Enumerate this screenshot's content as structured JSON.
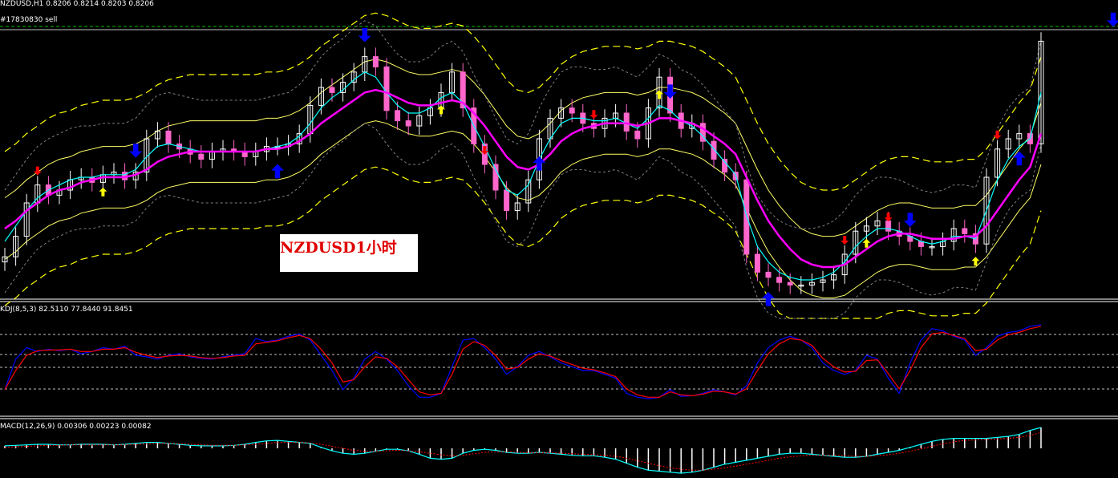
{
  "header": {
    "symbol_line": "NZDUSD,H1  0.8206 0.8214 0.8203 0.8206",
    "order_line": "#17830830 sell"
  },
  "annotation": {
    "text": "NZDUSD1小时"
  },
  "indicators": {
    "kdj_label": "KDJ(8,5,3) 82.5110 77.8440 91.8451",
    "macd_label": "MACD(12,26,9) 0.00306 0.00223 0.00082"
  },
  "colors": {
    "background": "#000000",
    "bull_candle": "#ffffff",
    "bear_candle": "#ff66cc",
    "ma_fast": "#00ffff",
    "ma_slow": "#ff00ff",
    "band_outer": "#ffff00",
    "band_inner": "#ffff66",
    "band_gray": "#808080",
    "arrow_big": "#0000ff",
    "arrow_sell": "#ff0000",
    "arrow_buy": "#ffff00",
    "kdj_k": "#0000ff",
    "kdj_d": "#ff0000",
    "macd_line": "#00ffff",
    "macd_signal": "#ff0000",
    "grid_dashed": "#c0c0c0"
  },
  "chart_data": {
    "type": "candlestick",
    "bars": 96,
    "close_y": [
      0.14,
      0.22,
      0.35,
      0.42,
      0.38,
      0.4,
      0.44,
      0.45,
      0.43,
      0.46,
      0.47,
      0.44,
      0.47,
      0.6,
      0.63,
      0.58,
      0.56,
      0.54,
      0.52,
      0.55,
      0.56,
      0.55,
      0.53,
      0.55,
      0.57,
      0.57,
      0.58,
      0.62,
      0.73,
      0.8,
      0.78,
      0.82,
      0.86,
      0.92,
      0.88,
      0.71,
      0.67,
      0.65,
      0.69,
      0.72,
      0.78,
      0.86,
      0.72,
      0.58,
      0.5,
      0.4,
      0.32,
      0.35,
      0.44,
      0.6,
      0.68,
      0.72,
      0.7,
      0.66,
      0.64,
      0.68,
      0.7,
      0.63,
      0.6,
      0.72,
      0.84,
      0.7,
      0.64,
      0.66,
      0.59,
      0.52,
      0.47,
      0.44,
      0.15,
      0.08,
      0.06,
      0.04,
      0.03,
      0.03,
      0.04,
      0.05,
      0.07,
      0.15,
      0.24,
      0.26,
      0.28,
      0.24,
      0.22,
      0.2,
      0.18,
      0.18,
      0.2,
      0.25,
      0.23,
      0.19,
      0.45,
      0.56,
      0.6,
      0.62,
      0.58,
      0.98
    ],
    "ma_fast": [
      0.2,
      0.26,
      0.32,
      0.37,
      0.4,
      0.42,
      0.44,
      0.45,
      0.45,
      0.46,
      0.46,
      0.46,
      0.48,
      0.53,
      0.57,
      0.58,
      0.57,
      0.56,
      0.55,
      0.55,
      0.55,
      0.55,
      0.55,
      0.55,
      0.56,
      0.57,
      0.58,
      0.61,
      0.66,
      0.72,
      0.76,
      0.79,
      0.83,
      0.86,
      0.84,
      0.78,
      0.73,
      0.7,
      0.7,
      0.72,
      0.76,
      0.78,
      0.74,
      0.65,
      0.57,
      0.48,
      0.4,
      0.38,
      0.42,
      0.52,
      0.6,
      0.66,
      0.68,
      0.68,
      0.67,
      0.67,
      0.68,
      0.66,
      0.64,
      0.68,
      0.73,
      0.71,
      0.67,
      0.65,
      0.61,
      0.56,
      0.51,
      0.46,
      0.3,
      0.18,
      0.12,
      0.08,
      0.06,
      0.05,
      0.05,
      0.06,
      0.08,
      0.12,
      0.18,
      0.22,
      0.25,
      0.25,
      0.24,
      0.22,
      0.2,
      0.19,
      0.2,
      0.22,
      0.22,
      0.21,
      0.32,
      0.44,
      0.52,
      0.57,
      0.6,
      0.78
    ],
    "ma_slow": [
      0.25,
      0.28,
      0.32,
      0.35,
      0.38,
      0.4,
      0.41,
      0.43,
      0.44,
      0.45,
      0.45,
      0.45,
      0.46,
      0.48,
      0.51,
      0.53,
      0.54,
      0.55,
      0.55,
      0.55,
      0.55,
      0.55,
      0.55,
      0.55,
      0.56,
      0.56,
      0.57,
      0.59,
      0.62,
      0.66,
      0.69,
      0.72,
      0.75,
      0.78,
      0.79,
      0.78,
      0.76,
      0.74,
      0.73,
      0.73,
      0.74,
      0.75,
      0.74,
      0.7,
      0.65,
      0.59,
      0.53,
      0.49,
      0.48,
      0.5,
      0.54,
      0.59,
      0.62,
      0.64,
      0.65,
      0.66,
      0.66,
      0.66,
      0.65,
      0.66,
      0.68,
      0.68,
      0.67,
      0.66,
      0.64,
      0.61,
      0.58,
      0.54,
      0.45,
      0.36,
      0.28,
      0.22,
      0.17,
      0.13,
      0.11,
      0.1,
      0.1,
      0.11,
      0.14,
      0.17,
      0.2,
      0.22,
      0.23,
      0.23,
      0.22,
      0.21,
      0.21,
      0.21,
      0.22,
      0.22,
      0.26,
      0.32,
      0.38,
      0.44,
      0.49,
      0.62
    ],
    "kdj_k": [
      0.15,
      0.55,
      0.7,
      0.65,
      0.68,
      0.66,
      0.68,
      0.62,
      0.65,
      0.7,
      0.68,
      0.72,
      0.6,
      0.58,
      0.55,
      0.6,
      0.62,
      0.58,
      0.56,
      0.55,
      0.58,
      0.6,
      0.62,
      0.82,
      0.78,
      0.8,
      0.85,
      0.88,
      0.8,
      0.6,
      0.4,
      0.15,
      0.3,
      0.55,
      0.65,
      0.55,
      0.4,
      0.2,
      0.05,
      0.05,
      0.1,
      0.45,
      0.8,
      0.82,
      0.7,
      0.55,
      0.35,
      0.45,
      0.6,
      0.65,
      0.58,
      0.5,
      0.45,
      0.4,
      0.4,
      0.35,
      0.3,
      0.1,
      0.05,
      0.03,
      0.05,
      0.15,
      0.06,
      0.07,
      0.1,
      0.15,
      0.12,
      0.08,
      0.2,
      0.5,
      0.7,
      0.8,
      0.85,
      0.8,
      0.7,
      0.5,
      0.4,
      0.35,
      0.4,
      0.6,
      0.55,
      0.3,
      0.1,
      0.5,
      0.8,
      0.95,
      0.92,
      0.85,
      0.8,
      0.6,
      0.7,
      0.85,
      0.9,
      0.92,
      0.98,
      1.0
    ],
    "kdj_d": [
      0.15,
      0.4,
      0.6,
      0.66,
      0.67,
      0.67,
      0.68,
      0.65,
      0.65,
      0.68,
      0.68,
      0.7,
      0.64,
      0.6,
      0.57,
      0.59,
      0.6,
      0.59,
      0.57,
      0.56,
      0.57,
      0.59,
      0.6,
      0.75,
      0.77,
      0.79,
      0.83,
      0.86,
      0.82,
      0.68,
      0.5,
      0.25,
      0.28,
      0.45,
      0.58,
      0.56,
      0.45,
      0.28,
      0.12,
      0.08,
      0.1,
      0.35,
      0.68,
      0.78,
      0.73,
      0.6,
      0.42,
      0.44,
      0.55,
      0.62,
      0.59,
      0.53,
      0.48,
      0.43,
      0.41,
      0.37,
      0.32,
      0.16,
      0.08,
      0.05,
      0.05,
      0.12,
      0.08,
      0.07,
      0.09,
      0.13,
      0.12,
      0.09,
      0.16,
      0.4,
      0.62,
      0.75,
      0.82,
      0.8,
      0.73,
      0.56,
      0.45,
      0.38,
      0.39,
      0.53,
      0.54,
      0.36,
      0.16,
      0.4,
      0.7,
      0.88,
      0.9,
      0.86,
      0.82,
      0.66,
      0.68,
      0.8,
      0.87,
      0.9,
      0.95,
      0.98
    ],
    "macd": [
      0.55,
      0.56,
      0.57,
      0.58,
      0.58,
      0.57,
      0.57,
      0.58,
      0.58,
      0.58,
      0.57,
      0.58,
      0.6,
      0.62,
      0.62,
      0.6,
      0.58,
      0.56,
      0.55,
      0.55,
      0.55,
      0.56,
      0.58,
      0.62,
      0.65,
      0.66,
      0.64,
      0.62,
      0.6,
      0.52,
      0.45,
      0.4,
      0.38,
      0.4,
      0.44,
      0.48,
      0.48,
      0.45,
      0.38,
      0.3,
      0.28,
      0.3,
      0.4,
      0.46,
      0.48,
      0.46,
      0.42,
      0.4,
      0.4,
      0.42,
      0.4,
      0.38,
      0.36,
      0.35,
      0.35,
      0.32,
      0.28,
      0.2,
      0.12,
      0.06,
      0.04,
      0.02,
      0.0,
      0.02,
      0.06,
      0.12,
      0.18,
      0.22,
      0.26,
      0.3,
      0.34,
      0.38,
      0.4,
      0.4,
      0.38,
      0.36,
      0.34,
      0.32,
      0.32,
      0.34,
      0.38,
      0.42,
      0.46,
      0.52,
      0.58,
      0.64,
      0.68,
      0.7,
      0.7,
      0.7,
      0.7,
      0.72,
      0.74,
      0.78,
      0.86,
      0.92
    ],
    "macd_signal": [
      0.52,
      0.53,
      0.54,
      0.55,
      0.56,
      0.56,
      0.57,
      0.57,
      0.57,
      0.57,
      0.57,
      0.57,
      0.58,
      0.59,
      0.6,
      0.6,
      0.59,
      0.58,
      0.57,
      0.56,
      0.56,
      0.56,
      0.57,
      0.58,
      0.6,
      0.62,
      0.62,
      0.62,
      0.61,
      0.58,
      0.54,
      0.5,
      0.46,
      0.44,
      0.44,
      0.45,
      0.46,
      0.45,
      0.43,
      0.4,
      0.37,
      0.35,
      0.36,
      0.39,
      0.42,
      0.43,
      0.43,
      0.42,
      0.41,
      0.41,
      0.41,
      0.4,
      0.39,
      0.38,
      0.37,
      0.36,
      0.34,
      0.3,
      0.25,
      0.2,
      0.15,
      0.11,
      0.08,
      0.06,
      0.06,
      0.08,
      0.11,
      0.14,
      0.18,
      0.22,
      0.26,
      0.3,
      0.33,
      0.35,
      0.36,
      0.36,
      0.36,
      0.35,
      0.34,
      0.34,
      0.35,
      0.37,
      0.4,
      0.44,
      0.49,
      0.54,
      0.59,
      0.63,
      0.66,
      0.67,
      0.68,
      0.69,
      0.7,
      0.72,
      0.76,
      0.82
    ],
    "big_arrows": [
      {
        "bar": 12,
        "dir": "down"
      },
      {
        "bar": 25,
        "dir": "up"
      },
      {
        "bar": 33,
        "dir": "down"
      },
      {
        "bar": 49,
        "dir": "up"
      },
      {
        "bar": 61,
        "dir": "down"
      },
      {
        "bar": 70,
        "dir": "up"
      },
      {
        "bar": 83,
        "dir": "down"
      },
      {
        "bar": 93,
        "dir": "up"
      },
      {
        "bar": 108,
        "dir": "down"
      }
    ],
    "small_arrows": [
      {
        "bar": 3,
        "dir": "down",
        "color": "red"
      },
      {
        "bar": 9,
        "dir": "up",
        "color": "yellow"
      },
      {
        "bar": 40,
        "dir": "up",
        "color": "yellow"
      },
      {
        "bar": 44,
        "dir": "down",
        "color": "red"
      },
      {
        "bar": 54,
        "dir": "down",
        "color": "red"
      },
      {
        "bar": 60,
        "dir": "up",
        "color": "yellow"
      },
      {
        "bar": 77,
        "dir": "down",
        "color": "red"
      },
      {
        "bar": 79,
        "dir": "up",
        "color": "yellow"
      },
      {
        "bar": 81,
        "dir": "down",
        "color": "red"
      },
      {
        "bar": 89,
        "dir": "up",
        "color": "yellow"
      },
      {
        "bar": 91,
        "dir": "down",
        "color": "red"
      }
    ]
  }
}
